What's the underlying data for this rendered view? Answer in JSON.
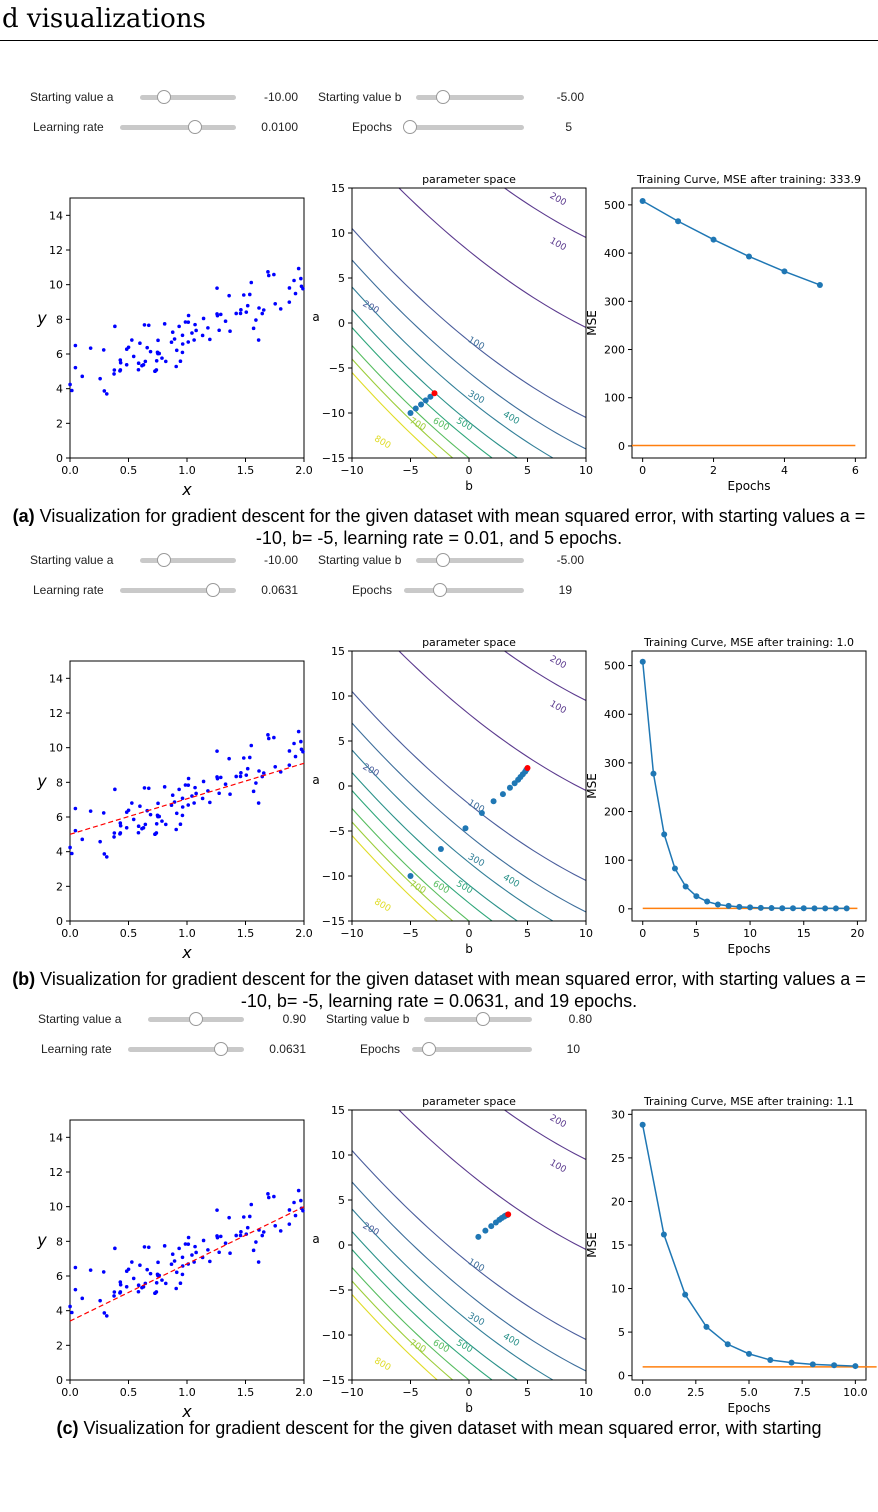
{
  "header": {
    "title": "d visualizations"
  },
  "panels": [
    {
      "id": "a",
      "controls": {
        "a_label": "Starting value a",
        "a_value": "-10.00",
        "b_label": "Starting value b",
        "b_value": "-5.00",
        "lr_label": "Learning rate",
        "lr_value": "0.0100",
        "ep_label": "Epochs",
        "ep_value": "5",
        "a_slider_fraction": 0.25,
        "b_slider_fraction": 0.25,
        "lr_slider_fraction": 0.65,
        "ep_slider_fraction": 0.05
      },
      "caption_tag": "(a)",
      "caption_text": " Visualization for gradient descent for the given dataset with mean squared error, with starting values a = -10, b= -5, learning rate = 0.01, and 5 epochs."
    },
    {
      "id": "b",
      "controls": {
        "a_label": "Starting value a",
        "a_value": "-10.00",
        "b_label": "Starting value b",
        "b_value": "-5.00",
        "lr_label": "Learning rate",
        "lr_value": "0.0631",
        "ep_label": "Epochs",
        "ep_value": "19",
        "a_slider_fraction": 0.25,
        "b_slider_fraction": 0.25,
        "lr_slider_fraction": 0.8,
        "ep_slider_fraction": 0.3
      },
      "caption_tag": "(b)",
      "caption_text": " Visualization for gradient descent for the given dataset with mean squared error, with starting values a = -10, b= -5, learning rate = 0.0631, and 19 epochs."
    },
    {
      "id": "c",
      "controls": {
        "a_label": "Starting value a",
        "a_value": "0.90",
        "b_label": "Starting value b",
        "b_value": "0.80",
        "lr_label": "Learning rate",
        "lr_value": "0.0631",
        "ep_label": "Epochs",
        "ep_value": "10",
        "a_slider_fraction": 0.5,
        "b_slider_fraction": 0.55,
        "lr_slider_fraction": 0.8,
        "ep_slider_fraction": 0.14
      },
      "caption_tag": "(c)",
      "caption_text": " Visualization for gradient descent for the given dataset with mean squared error, with starting"
    }
  ],
  "chart_data": [
    {
      "panel": "a",
      "type": "scatter",
      "title": "",
      "xlabel": "x",
      "ylabel": "y",
      "xlim": [
        0,
        2
      ],
      "ylim": [
        0,
        15
      ],
      "xticks": [
        "0.0",
        "0.5",
        "1.0",
        "1.5",
        "2.0"
      ],
      "yticks": [
        "0",
        "2",
        "4",
        "6",
        "8",
        "10",
        "12",
        "14"
      ],
      "points_color": "#0000ff",
      "fit_line": null
    },
    {
      "panel": "a",
      "type": "line",
      "title": "parameter space",
      "xlabel": "b",
      "ylabel": "a",
      "xlim": [
        -10,
        10
      ],
      "ylim": [
        -15,
        15
      ],
      "xticks": [
        "−10",
        "−5",
        "0",
        "5",
        "10"
      ],
      "yticks": [
        "15",
        "10",
        "5",
        "0",
        "−5",
        "−10",
        "−15"
      ],
      "contour_labels": [
        "200",
        "100",
        "200",
        "100",
        "300",
        "400",
        "500",
        "600",
        "700",
        "800"
      ],
      "path": {
        "b": [
          -5.0,
          -4.55,
          -4.1,
          -3.7,
          -3.3,
          -2.95
        ],
        "a": [
          -10.0,
          -9.5,
          -9.05,
          -8.6,
          -8.2,
          -7.8
        ]
      },
      "path_color": "#1f77b4",
      "end_color": "#ff0000"
    },
    {
      "panel": "a",
      "type": "line",
      "title": "Training Curve, MSE after training: 333.9",
      "xlabel": "Epochs",
      "ylabel": "MSE",
      "xlim": [
        -0.3,
        6.3
      ],
      "ylim": [
        -25,
        535
      ],
      "xticks": [
        "0",
        "2",
        "4",
        "6"
      ],
      "yticks": [
        "0",
        "100",
        "200",
        "300",
        "400",
        "500"
      ],
      "series": [
        {
          "values": [
            508,
            466,
            428,
            393,
            362,
            333.9
          ],
          "x": [
            0,
            1,
            2,
            3,
            4,
            5
          ],
          "color": "#1f77b4"
        },
        {
          "values": [
            1,
            1
          ],
          "x": [
            -0.3,
            6.0
          ],
          "color": "#ff7f0e"
        }
      ]
    },
    {
      "panel": "b",
      "type": "scatter",
      "title": "",
      "xlabel": "x",
      "ylabel": "y",
      "xlim": [
        0,
        2
      ],
      "ylim": [
        0,
        15
      ],
      "xticks": [
        "0.0",
        "0.5",
        "1.0",
        "1.5",
        "2.0"
      ],
      "yticks": [
        "0",
        "2",
        "4",
        "6",
        "8",
        "10",
        "12",
        "14"
      ],
      "points_color": "#0000ff",
      "fit_line": {
        "x": [
          0,
          2
        ],
        "y": [
          5.0,
          9.1
        ],
        "color": "#ff0000"
      }
    },
    {
      "panel": "b",
      "type": "line",
      "title": "parameter space",
      "xlabel": "b",
      "ylabel": "a",
      "xlim": [
        -10,
        10
      ],
      "ylim": [
        -15,
        15
      ],
      "xticks": [
        "−10",
        "−5",
        "0",
        "5",
        "10"
      ],
      "yticks": [
        "15",
        "10",
        "5",
        "0",
        "−5",
        "−10",
        "−15"
      ],
      "contour_labels": [
        "200",
        "100",
        "200",
        "100",
        "300",
        "400",
        "500",
        "600",
        "700",
        "800"
      ],
      "path": {
        "b": [
          -5.0,
          -2.4,
          -0.3,
          1.1,
          2.1,
          2.9,
          3.5,
          3.9,
          4.2,
          4.4,
          4.6,
          4.8,
          4.9,
          5.0
        ],
        "a": [
          -10.0,
          -7.0,
          -4.7,
          -3.0,
          -1.7,
          -0.9,
          -0.2,
          0.3,
          0.7,
          1.0,
          1.3,
          1.6,
          1.8,
          2.0
        ]
      },
      "path_color": "#1f77b4",
      "end_color": "#ff0000"
    },
    {
      "panel": "b",
      "type": "line",
      "title": "Training Curve, MSE after training: 1.0",
      "xlabel": "Epochs",
      "ylabel": "MSE",
      "xlim": [
        -1,
        20.8
      ],
      "ylim": [
        -25,
        530
      ],
      "xticks": [
        "0",
        "5",
        "10",
        "15",
        "20"
      ],
      "yticks": [
        "0",
        "100",
        "200",
        "300",
        "400",
        "500"
      ],
      "series": [
        {
          "values": [
            508,
            278,
            153,
            83,
            46,
            26,
            15,
            9,
            6,
            4,
            3,
            2,
            1.6,
            1.3,
            1.2,
            1.1,
            1.05,
            1.02,
            1.0,
            1.0
          ],
          "x": [
            0,
            1,
            2,
            3,
            4,
            5,
            6,
            7,
            8,
            9,
            10,
            11,
            12,
            13,
            14,
            15,
            16,
            17,
            18,
            19
          ],
          "color": "#1f77b4"
        },
        {
          "values": [
            1,
            1
          ],
          "x": [
            0,
            20
          ],
          "color": "#ff7f0e"
        }
      ]
    },
    {
      "panel": "c",
      "type": "scatter",
      "title": "",
      "xlabel": "x",
      "ylabel": "y",
      "xlim": [
        0,
        2
      ],
      "ylim": [
        0,
        15
      ],
      "xticks": [
        "0.0",
        "0.5",
        "1.0",
        "1.5",
        "2.0"
      ],
      "yticks": [
        "0",
        "2",
        "4",
        "6",
        "8",
        "10",
        "12",
        "14"
      ],
      "points_color": "#0000ff",
      "fit_line": {
        "x": [
          0,
          2
        ],
        "y": [
          3.4,
          10.0
        ],
        "color": "#ff0000"
      }
    },
    {
      "panel": "c",
      "type": "line",
      "title": "parameter space",
      "xlabel": "b",
      "ylabel": "a",
      "xlim": [
        -10,
        10
      ],
      "ylim": [
        -15,
        15
      ],
      "xticks": [
        "−10",
        "−5",
        "0",
        "5",
        "10"
      ],
      "yticks": [
        "15",
        "10",
        "5",
        "0",
        "−5",
        "−10",
        "−15"
      ],
      "contour_labels": [
        "200",
        "100",
        "200",
        "100",
        "300",
        "400",
        "500",
        "600",
        "700",
        "800"
      ],
      "path": {
        "b": [
          0.8,
          1.4,
          1.9,
          2.3,
          2.6,
          2.8,
          3.0,
          3.1,
          3.2,
          3.3,
          3.35
        ],
        "a": [
          0.9,
          1.6,
          2.1,
          2.5,
          2.8,
          3.0,
          3.15,
          3.25,
          3.3,
          3.35,
          3.4
        ]
      },
      "path_color": "#1f77b4",
      "end_color": "#ff0000"
    },
    {
      "panel": "c",
      "type": "line",
      "title": "Training Curve, MSE after training: 1.1",
      "xlabel": "Epochs",
      "ylabel": "MSE",
      "xlim": [
        -0.5,
        10.5
      ],
      "ylim": [
        -0.5,
        30.5
      ],
      "xticks": [
        "0.0",
        "2.5",
        "5.0",
        "7.5",
        "10.0"
      ],
      "yticks": [
        "0",
        "5",
        "10",
        "15",
        "20",
        "25",
        "30"
      ],
      "series": [
        {
          "values": [
            28.8,
            16.2,
            9.3,
            5.6,
            3.6,
            2.5,
            1.8,
            1.5,
            1.3,
            1.2,
            1.1
          ],
          "x": [
            0,
            1,
            2,
            3,
            4,
            5,
            6,
            7,
            8,
            9,
            10
          ],
          "color": "#1f77b4"
        },
        {
          "values": [
            1,
            1
          ],
          "x": [
            0,
            11
          ],
          "color": "#ff7f0e"
        }
      ]
    }
  ]
}
